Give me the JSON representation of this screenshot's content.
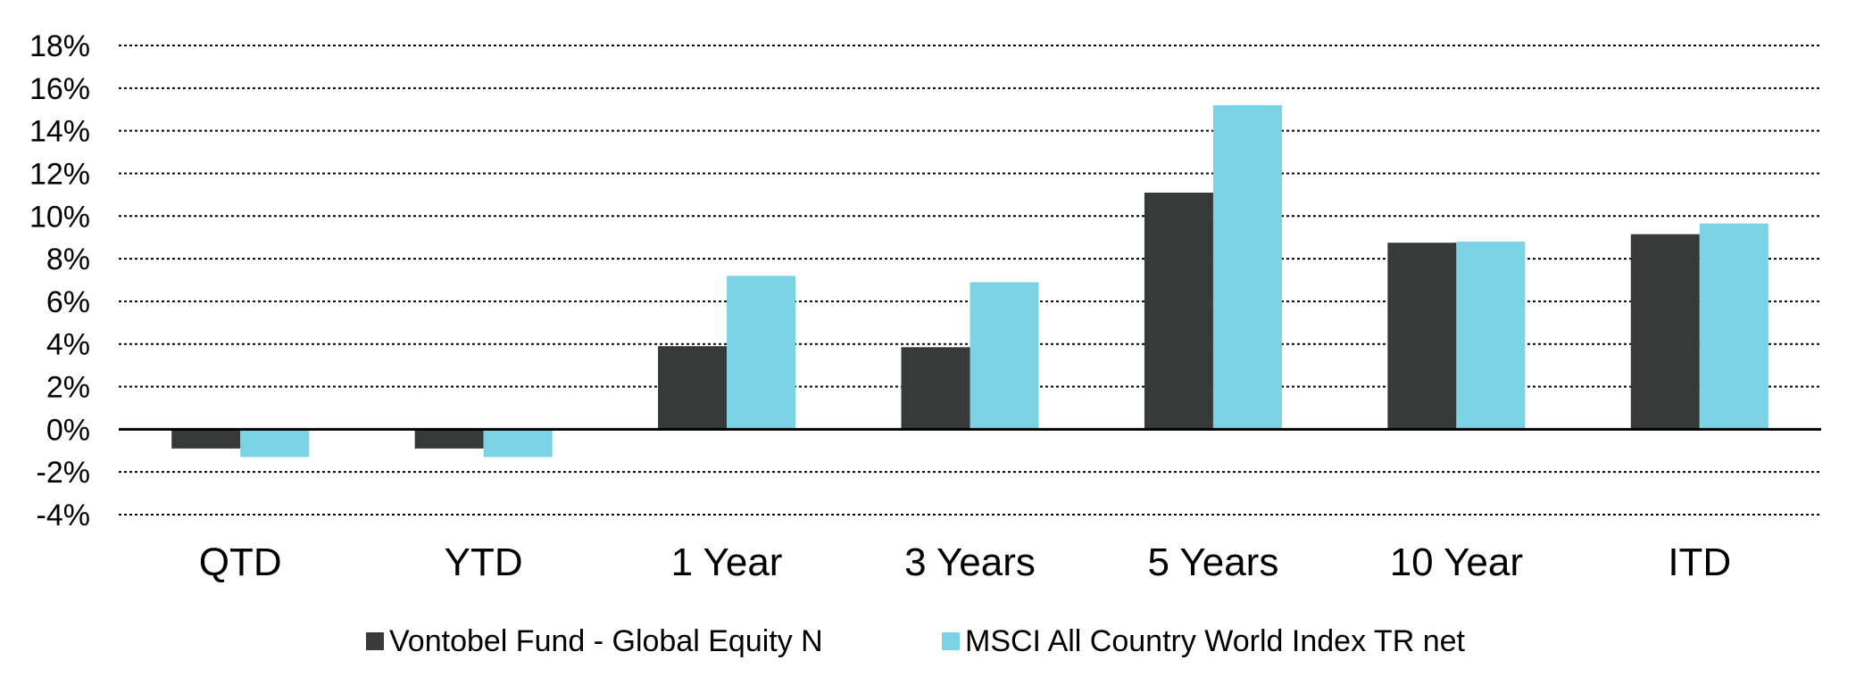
{
  "chart_data": {
    "type": "bar",
    "title": "",
    "xlabel": "",
    "ylabel": "",
    "categories": [
      "QTD",
      "YTD",
      "1 Year",
      "3 Years",
      "5 Years",
      "10 Year",
      "ITD"
    ],
    "series": [
      {
        "name": "Vontobel Fund - Global Equity N",
        "color": "#373a38",
        "values": [
          -0.9,
          -0.9,
          3.9,
          3.85,
          11.1,
          8.75,
          9.15
        ]
      },
      {
        "name": "MSCI All Country World Index TR net",
        "color": "#79d3e5",
        "values": [
          -1.3,
          -1.3,
          7.2,
          6.9,
          15.2,
          8.8,
          9.65
        ]
      }
    ],
    "ylim": [
      -4,
      18
    ],
    "yticks": [
      18,
      16,
      14,
      12,
      10,
      8,
      6,
      4,
      2,
      0,
      -2,
      -4
    ],
    "ytick_labels": [
      "18%",
      "16%",
      "14%",
      "12%",
      "10%",
      "8%",
      "6%",
      "4%",
      "2%",
      "0%",
      "-2%",
      "-4%"
    ],
    "grid": true,
    "grid_style": "dotted",
    "legend_position": "bottom"
  }
}
